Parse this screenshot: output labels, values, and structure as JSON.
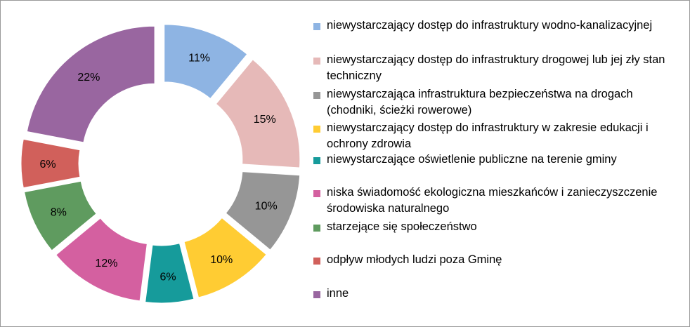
{
  "chart_data": {
    "type": "pie",
    "variant": "exploded-donut",
    "title": "",
    "legend_position": "right",
    "categories": [
      "niewystarczający  dostęp do infrastruktury  wodno-kanalizacyjnej",
      "niewystarczający  dostęp do infrastruktury  drogowej lub jej zły stan techniczny",
      "niewystarczająca  infrastruktura  bezpieczeństwa na drogach (chodniki,  ścieżki rowerowe)",
      "niewystarczający  dostęp do infrastruktury  w zakresie edukacji i ochrony zdrowia",
      "niewystarczające  oświetlenie publiczne na terenie gminy",
      "niska  świadomość ekologiczna mieszkańców i zanieczyszczenie  środowiska naturalnego",
      "starzejące się społeczeństwo",
      "odpływ młodych ludzi poza Gminę",
      "inne"
    ],
    "values": [
      11,
      15,
      10,
      10,
      6,
      12,
      8,
      6,
      22
    ],
    "data_labels": [
      "11%",
      "15%",
      "10%",
      "10%",
      "6%",
      "12%",
      "8%",
      "6%",
      "22%"
    ],
    "colors": [
      "#8EB4E3",
      "#E6B9B8",
      "#969696",
      "#FFCC33",
      "#169B9B",
      "#D460A0",
      "#5F9B5F",
      "#D1605B",
      "#9966A0"
    ]
  }
}
